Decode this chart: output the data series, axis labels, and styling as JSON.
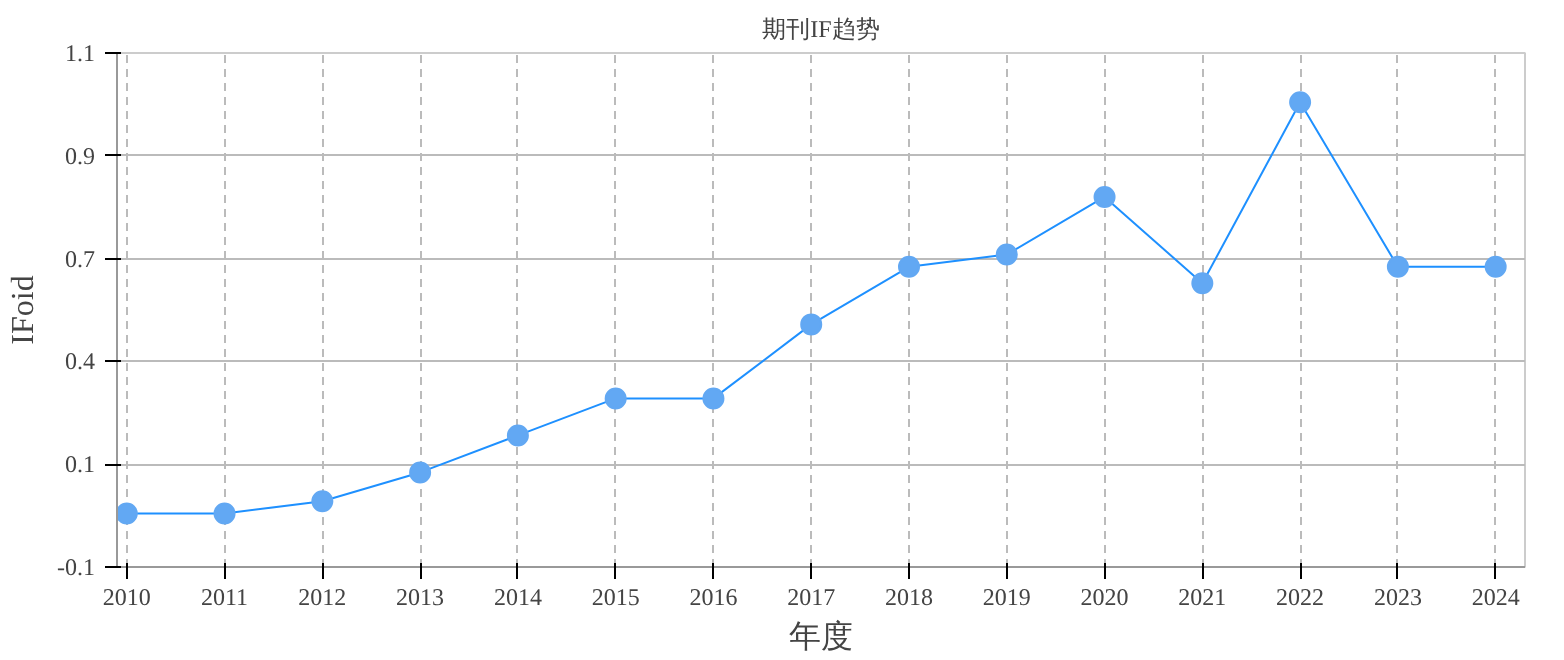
{
  "chart_data": {
    "type": "line",
    "title": "期刊IF趋势",
    "xlabel": "年度",
    "ylabel": "IFoid",
    "x": [
      2010,
      2011,
      2012,
      2013,
      2014,
      2015,
      2016,
      2017,
      2018,
      2019,
      2020,
      2021,
      2022,
      2023,
      2024
    ],
    "series": [
      {
        "color": "#1e90ff",
        "values": [
          0.03,
          0.03,
          0.06,
          0.13,
          0.22,
          0.31,
          0.31,
          0.49,
          0.63,
          0.66,
          0.8,
          0.59,
          1.03,
          0.63,
          0.63
        ]
      }
    ],
    "xlim": [
      2009.9,
      2024.3
    ],
    "xticks": [
      2010,
      2011,
      2012,
      2013,
      2014,
      2015,
      2016,
      2017,
      2018,
      2019,
      2020,
      2021,
      2022,
      2023,
      2024
    ],
    "ylim": [
      -0.1,
      1.15
    ],
    "yticks": [
      {
        "value": -0.1,
        "label": "-0.1"
      },
      {
        "value": 0.15,
        "label": "0.1"
      },
      {
        "value": 0.4,
        "label": "0.4"
      },
      {
        "value": 0.65,
        "label": "0.7"
      },
      {
        "value": 0.9,
        "label": "0.9"
      },
      {
        "value": 1.15,
        "label": "1.1"
      }
    ],
    "grid": true,
    "marker": "circle",
    "line_style": "solid"
  }
}
